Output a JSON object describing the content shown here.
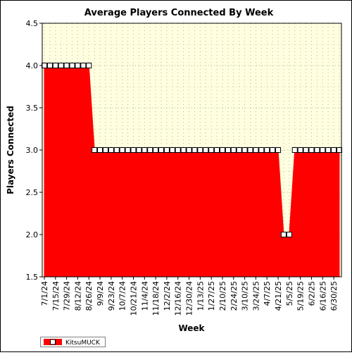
{
  "chart_data": {
    "type": "area",
    "title": "Average Players Connected By Week",
    "xlabel": "Week",
    "ylabel": "Players Connected",
    "ylim": [
      1.5,
      4.5
    ],
    "yticks": [
      "1.5",
      "2.0",
      "2.5",
      "3.0",
      "3.5",
      "4.0",
      "4.5"
    ],
    "grid": true,
    "legend_position": "bottom-left",
    "colors": {
      "fill": "#ff0000",
      "plot_background": "#ffffe0",
      "marker_fill": "#ffffff",
      "grid": "#b4b4a0"
    },
    "x": [
      "7/1/24",
      "7/8/24",
      "7/15/24",
      "7/22/24",
      "7/29/24",
      "8/5/24",
      "8/12/24",
      "8/19/24",
      "8/26/24",
      "9/2/24",
      "9/9/24",
      "9/16/24",
      "9/23/24",
      "9/30/24",
      "10/7/24",
      "10/14/24",
      "10/21/24",
      "10/28/24",
      "11/4/24",
      "11/11/24",
      "11/18/24",
      "11/25/24",
      "12/2/24",
      "12/9/24",
      "12/16/24",
      "12/23/24",
      "12/30/24",
      "1/6/25",
      "1/13/25",
      "1/20/25",
      "1/27/25",
      "2/3/25",
      "2/10/25",
      "2/17/25",
      "2/24/25",
      "3/3/25",
      "3/10/25",
      "3/17/25",
      "3/24/25",
      "3/31/25",
      "4/7/25",
      "4/14/25",
      "4/21/25",
      "4/28/25",
      "5/5/25",
      "5/12/25",
      "5/19/25",
      "5/26/25",
      "6/2/25",
      "6/9/25",
      "6/16/25",
      "6/23/25",
      "6/30/25",
      "7/7/25"
    ],
    "x_tick_labels": [
      "7/1/24",
      "7/15/24",
      "7/29/24",
      "8/12/24",
      "8/26/24",
      "9/9/24",
      "9/23/24",
      "10/7/24",
      "10/21/24",
      "11/4/24",
      "11/18/24",
      "12/2/24",
      "12/16/24",
      "12/30/24",
      "1/13/25",
      "1/27/25",
      "2/10/25",
      "2/24/25",
      "3/10/25",
      "3/24/25",
      "4/7/25",
      "4/21/25",
      "5/5/25",
      "5/19/25",
      "6/2/25",
      "6/16/25",
      "6/30/25"
    ],
    "series": [
      {
        "name": "KitsuMUCK",
        "values": [
          4,
          4,
          4,
          4,
          4,
          4,
          4,
          4,
          4,
          3,
          3,
          3,
          3,
          3,
          3,
          3,
          3,
          3,
          3,
          3,
          3,
          3,
          3,
          3,
          3,
          3,
          3,
          3,
          3,
          3,
          3,
          3,
          3,
          3,
          3,
          3,
          3,
          3,
          3,
          3,
          3,
          3,
          3,
          2,
          2,
          3,
          3,
          3,
          3,
          3,
          3,
          3,
          3,
          3
        ]
      }
    ]
  }
}
